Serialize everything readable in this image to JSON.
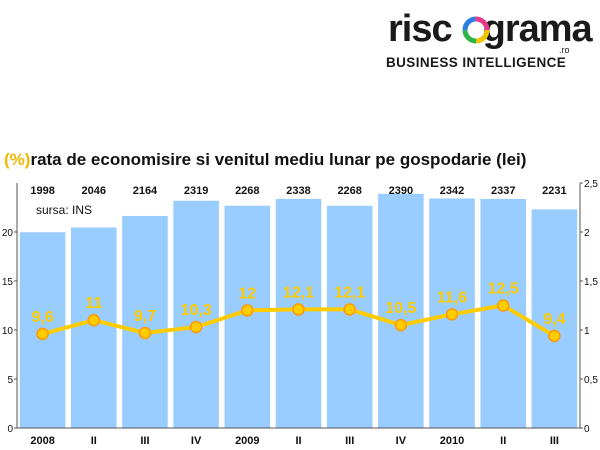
{
  "logo": {
    "word_left": "risc",
    "word_right": "grama",
    "domain": ".ro",
    "tagline": "BUSINESS INTELLIGENCE"
  },
  "title": {
    "unit": "(%)",
    "text": "rata de economisire si venitul mediu lunar pe gospodarie (lei)"
  },
  "source": "sursa: INS",
  "colors": {
    "bars": "#99ccff",
    "line": "#ffcc00",
    "labels": "#ffcc00",
    "marker_fill": "#ffcc00",
    "marker_edge": "#ff9900"
  },
  "chart_data": {
    "type": "bar+line",
    "categories": [
      "2008",
      "II",
      "III",
      "IV",
      "2009",
      "II",
      "III",
      "IV",
      "2010",
      "II",
      "III"
    ],
    "series": [
      {
        "name": "venitul mediu lunar pe gospodarie (lei)",
        "type": "bar",
        "values": [
          1998,
          2046,
          2164,
          2319,
          2268,
          2338,
          2268,
          2390,
          2342,
          2337,
          2231
        ]
      },
      {
        "name": "rata de economisire (%)",
        "type": "line",
        "values": [
          9.6,
          11,
          9.7,
          10.3,
          12,
          12.1,
          12.1,
          10.5,
          11.6,
          12.5,
          9.4
        ]
      }
    ],
    "bar_labels": [
      "1998",
      "2046",
      "2164",
      "2319",
      "2268",
      "2338",
      "2268",
      "2390",
      "2342",
      "2337",
      "2231"
    ],
    "line_labels": [
      "9,6",
      "11",
      "9,7",
      "10,3",
      "12",
      "12,1",
      "12,1",
      "10,5",
      "11,6",
      "12,5",
      "9,4"
    ],
    "left_axis": {
      "ylim": [
        0,
        25
      ],
      "ticks": [
        "0",
        "5",
        "10",
        "15",
        "20"
      ]
    },
    "right_axis": {
      "ylim": [
        0,
        2500
      ],
      "ticks": [
        "0",
        "0,5",
        "1",
        "1,5",
        "2",
        "2,5"
      ]
    },
    "grid": false
  }
}
